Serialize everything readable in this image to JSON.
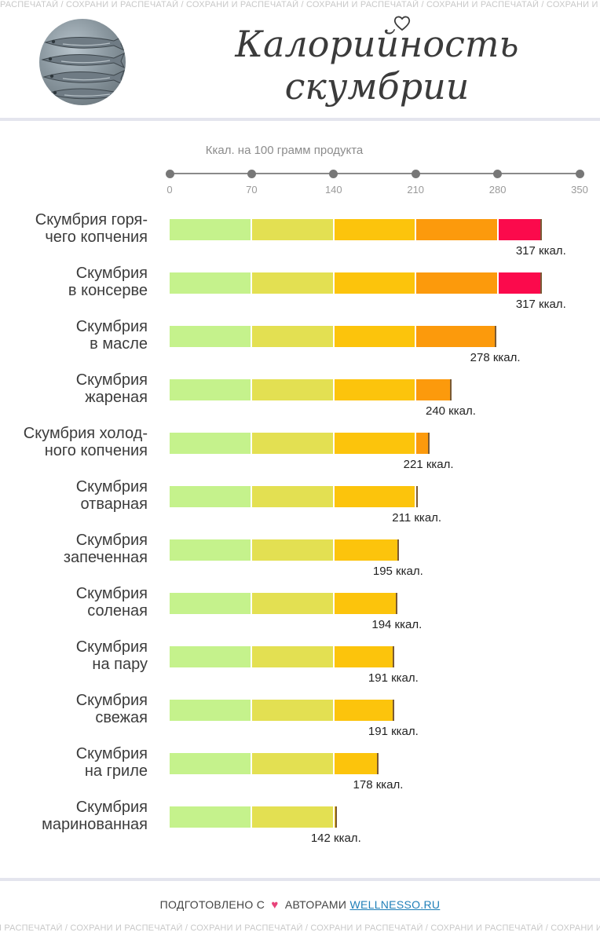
{
  "watermark_text": "СОХРАНИ И РАСПЕЧАТАЙ",
  "watermark_top": "РАСПЕЧАТАЙ / СОХРАНИ И РАСПЕЧАТАЙ / СОХРАНИ И РАСПЕЧАТАЙ / СОХРАНИ И РАСПЕЧАТАЙ / СОХРАНИ И РАСПЕЧАТАЙ / СОХРАНИ И РАСПЕЧАТАЙ / СОХРАНИ И РАСПЕЧАТАЙ",
  "watermark_bottom": "И РАСПЕЧАТАЙ / СОХРАНИ И РАСПЕЧАТАЙ / СОХРАНИ И РАСПЕЧАТАЙ / СОХРАНИ И РАСПЕЧАТАЙ / СОХРАНИ И РАСПЕЧАТАЙ / СОХРАНИ И РАСПЕЧАТАЙ / СОХРАНИ И РАСПЕЧАТАЙ",
  "header": {
    "title_line1": "Калорийность",
    "title_line2": "скумбрии",
    "photo_icon": "mackerel-fish-photo"
  },
  "colors": {
    "segments": [
      "#c5f28c",
      "#e3e052",
      "#fcc40c",
      "#fc9a0c",
      "#fb0a4c"
    ],
    "endcap": "#7a5a34",
    "heart": "#e8437a",
    "link": "#1f7fb8"
  },
  "chart_data": {
    "type": "bar",
    "orientation": "horizontal",
    "title": "Ккал. на 100 грамм продукта",
    "xlim": [
      0,
      350
    ],
    "ticks": [
      0,
      70,
      140,
      210,
      280,
      350
    ],
    "unit_suffix": " ккал.",
    "categories": [
      "Скумбрия горя-\nчего копчения",
      "Скумбрия\nв консерве",
      "Скумбрия\nв масле",
      "Скумбрия\nжареная",
      "Скумбрия холод-\nного копчения",
      "Скумбрия\nотварная",
      "Скумбрия\nзапеченная",
      "Скумбрия\nсоленая",
      "Скумбрия\nна пару",
      "Скумбрия\nсвежая",
      "Скумбрия\nна гриле",
      "Скумбрия\nмаринованная"
    ],
    "values": [
      317,
      317,
      278,
      240,
      221,
      211,
      195,
      194,
      191,
      191,
      178,
      142
    ],
    "value_labels": [
      "317 ккал.",
      "317 ккал.",
      "278 ккал.",
      "240 ккал.",
      "221 ккал.",
      "211 ккал.",
      "195 ккал.",
      "194 ккал.",
      "191 ккал.",
      "191 ккал.",
      "178 ккал.",
      "142 ккал."
    ],
    "segment_breaks": [
      70,
      140,
      210,
      280,
      350
    ],
    "grid": false,
    "legend": "none"
  },
  "footer": {
    "prefix": "ПОДГОТОВЛЕНО С",
    "heart_icon": "♥",
    "middle": "АВТОРАМИ",
    "link_text": "WELLNESSO.RU"
  }
}
